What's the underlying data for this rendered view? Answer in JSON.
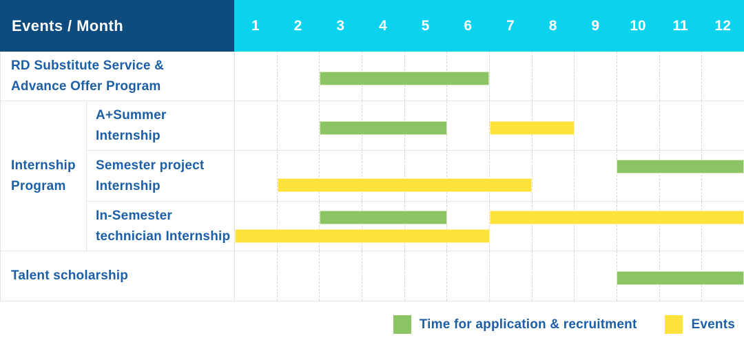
{
  "table": {
    "header": {
      "title": "Events / Month"
    },
    "months": [
      "1",
      "2",
      "3",
      "4",
      "5",
      "6",
      "7",
      "8",
      "9",
      "10",
      "11",
      "12"
    ],
    "rows": [
      {
        "lines": [
          "RD Substitute Service &",
          "Advance Offer Program"
        ]
      },
      {
        "lines": [
          "A+Summer",
          "Internship"
        ]
      },
      {
        "lines": [
          "Semester project",
          "Internship"
        ]
      },
      {
        "lines": [
          "In-Semester",
          "technician Internship"
        ]
      },
      {
        "lines": [
          "Talent scholarship"
        ]
      }
    ],
    "group": {
      "lines": [
        "Internship",
        "Program"
      ]
    }
  },
  "legend": {
    "items": [
      {
        "label": "Time for application & recruitment",
        "kind": "application",
        "color": "#8cc465"
      },
      {
        "label": "Events",
        "kind": "event",
        "color": "#ffe33c"
      }
    ]
  },
  "colors": {
    "header_navy": "#0d4a7e",
    "header_cyan": "#0bd3ee",
    "label_blue": "#1c5fa6",
    "bar_green": "#8cc465",
    "bar_yellow": "#ffe33c",
    "grid_line": "#e4e4e4",
    "month_grid_dashed": "#d6d6d6"
  },
  "chart_data": {
    "type": "bar",
    "subtype": "gantt",
    "title": "Events / Month",
    "xlabel": "Month",
    "x_ticks": [
      1,
      2,
      3,
      4,
      5,
      6,
      7,
      8,
      9,
      10,
      11,
      12
    ],
    "x_range": [
      1,
      12
    ],
    "grid": "vertical-dashed-per-month",
    "legend_position": "bottom-right",
    "legend": [
      {
        "label": "Time for application & recruitment",
        "color": "#8cc465"
      },
      {
        "label": "Events",
        "color": "#ffe33c"
      }
    ],
    "rows": [
      {
        "label": "RD Substitute Service & Advance Offer Program",
        "group": null,
        "bars": [
          {
            "kind": "application",
            "start_month": 3,
            "end_month": 6,
            "lane": "mid"
          }
        ]
      },
      {
        "label": "A+Summer Internship",
        "group": "Internship Program",
        "bars": [
          {
            "kind": "application",
            "start_month": 3,
            "end_month": 5,
            "lane": "mid"
          },
          {
            "kind": "event",
            "start_month": 7,
            "end_month": 8,
            "lane": "mid"
          }
        ]
      },
      {
        "label": "Semester project Internship",
        "group": "Internship Program",
        "bars": [
          {
            "kind": "application",
            "start_month": 10,
            "end_month": 12,
            "lane": "top"
          },
          {
            "kind": "event",
            "start_month": 2,
            "end_month": 7,
            "lane": "bottom"
          }
        ]
      },
      {
        "label": "In-Semester technician Internship",
        "group": "Internship Program",
        "bars": [
          {
            "kind": "application",
            "start_month": 3,
            "end_month": 5,
            "lane": "top"
          },
          {
            "kind": "event",
            "start_month": 7,
            "end_month": 12,
            "lane": "top"
          },
          {
            "kind": "event",
            "start_month": 1,
            "end_month": 6,
            "lane": "bottom"
          }
        ]
      },
      {
        "label": "Talent scholarship",
        "group": null,
        "bars": [
          {
            "kind": "application",
            "start_month": 10,
            "end_month": 12,
            "lane": "mid"
          }
        ]
      }
    ]
  }
}
